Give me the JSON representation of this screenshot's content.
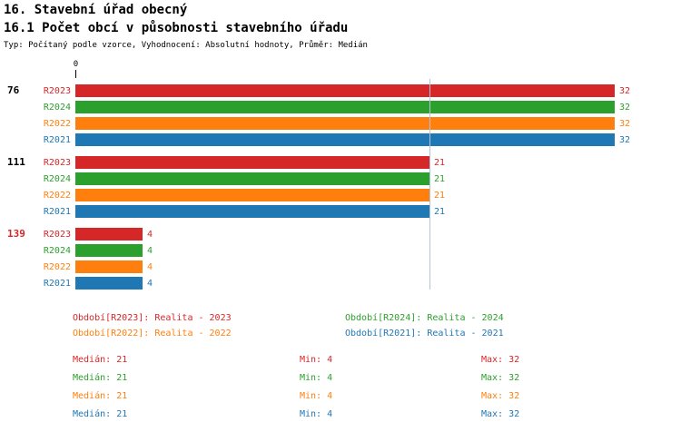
{
  "title": "16. Stavební úřad obecný",
  "subtitle": "16.1 Počet obcí v působnosti stavebního úřadu",
  "meta": "Typ: Počítaný podle vzorce, Vyhodnocení: Absolutní hodnoty, Průměr: Medián",
  "colors": {
    "R2023": "#d62728",
    "R2024": "#2ca02c",
    "R2022": "#ff7f0e",
    "R2021": "#1f77b4",
    "median_line": "#b0c4de",
    "text": "#000000"
  },
  "chart_data": {
    "type": "bar",
    "orientation": "horizontal",
    "title": "16.1 Počet obcí v působnosti stavebního úřadu",
    "axis_zero_label": "0",
    "xlabel": "",
    "ylabel": "",
    "xlim": [
      0,
      32
    ],
    "median": 21,
    "grid": false,
    "legend_position": "bottom",
    "series_order": [
      "R2023",
      "R2024",
      "R2022",
      "R2021"
    ],
    "groups": [
      {
        "label": "76",
        "label_color": "#000000",
        "rows": [
          {
            "series": "R2023",
            "value": 32
          },
          {
            "series": "R2024",
            "value": 32
          },
          {
            "series": "R2022",
            "value": 32
          },
          {
            "series": "R2021",
            "value": 32
          }
        ]
      },
      {
        "label": "111",
        "label_color": "#000000",
        "rows": [
          {
            "series": "R2023",
            "value": 21
          },
          {
            "series": "R2024",
            "value": 21
          },
          {
            "series": "R2022",
            "value": 21
          },
          {
            "series": "R2021",
            "value": 21
          }
        ]
      },
      {
        "label": "139",
        "label_color": "#d62728",
        "rows": [
          {
            "series": "R2023",
            "value": 4
          },
          {
            "series": "R2024",
            "value": 4
          },
          {
            "series": "R2022",
            "value": 4
          },
          {
            "series": "R2021",
            "value": 4
          }
        ]
      }
    ]
  },
  "legend": {
    "items": [
      {
        "series": "R2023",
        "label": "Období[R2023]:",
        "value": "Realita - 2023"
      },
      {
        "series": "R2024",
        "label": "Období[R2024]:",
        "value": "Realita - 2024"
      },
      {
        "series": "R2022",
        "label": "Období[R2022]:",
        "value": "Realita - 2022"
      },
      {
        "series": "R2021",
        "label": "Období[R2021]:",
        "value": "Realita - 2021"
      }
    ]
  },
  "stats": {
    "rows": [
      {
        "series": "R2023",
        "cells": [
          {
            "label": "Medián:",
            "value": "21"
          },
          {
            "label": "Min:",
            "value": "4"
          },
          {
            "label": "Max:",
            "value": "32"
          }
        ]
      },
      {
        "series": "R2024",
        "cells": [
          {
            "label": "Medián:",
            "value": "21"
          },
          {
            "label": "Min:",
            "value": "4"
          },
          {
            "label": "Max:",
            "value": "32"
          }
        ]
      },
      {
        "series": "R2022",
        "cells": [
          {
            "label": "Medián:",
            "value": "21"
          },
          {
            "label": "Min:",
            "value": "4"
          },
          {
            "label": "Max:",
            "value": "32"
          }
        ]
      },
      {
        "series": "R2021",
        "cells": [
          {
            "label": "Medián:",
            "value": "21"
          },
          {
            "label": "Min:",
            "value": "4"
          },
          {
            "label": "Max:",
            "value": "32"
          }
        ]
      }
    ]
  }
}
